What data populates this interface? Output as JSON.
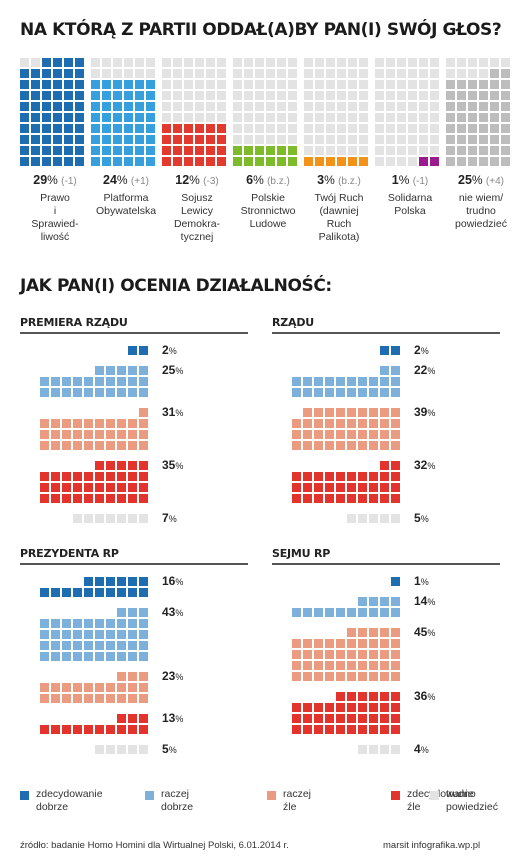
{
  "colors": {
    "empty": "#e3e3e3",
    "parties": [
      "#1f6db1",
      "#36a0df",
      "#e23a2e",
      "#7dbb2b",
      "#f29219",
      "#9b1b8e",
      "#bdbdbd"
    ],
    "ratings": [
      "#1f6db1",
      "#7db1db",
      "#eb9c80",
      "#e2332c",
      "#e3e3e3"
    ]
  },
  "title_parties": "NA KTÓRĄ Z PARTII ODDAŁ(A)BY PAN(I) SWÓJ GŁOS?",
  "title_ratings": "JAK PAN(I) OCENIA DZIAŁALNOŚĆ:",
  "chart_data": [
    {
      "type": "bar",
      "title": "NA KTÓRĄ Z PARTII ODDAŁ(A)BY PAN(I) SWÓJ GŁOS?",
      "categories": [
        "Prawo i Sprawiedliwość",
        "Platforma Obywatelska",
        "Sojusz Lewicy Demokratycznej",
        "Polskie Stronnictwo Ludowe",
        "Twój Ruch (dawniej Ruch Palikota)",
        "Solidarna Polska",
        "nie wiem/ trudno powiedzieć"
      ],
      "values": [
        29,
        24,
        12,
        6,
        3,
        1,
        25
      ],
      "changes": [
        "(-1)",
        "(+1)",
        "(-3)",
        "(b.z.)",
        "(b.z.)",
        "(-1)",
        "(+4)"
      ],
      "max_squares": 60
    },
    {
      "type": "bar",
      "title": "JAK PAN(I) OCENIA DZIAŁALNOŚĆ:",
      "categories": [
        "zdecydowanie dobrze",
        "raczej dobrze",
        "raczej źle",
        "zdecydowanie źle",
        "trudno powiedzieć"
      ],
      "series": [
        {
          "name": "PREMIERA RZĄDU",
          "values": [
            2,
            25,
            31,
            35,
            7
          ]
        },
        {
          "name": "RZĄDU",
          "values": [
            2,
            22,
            39,
            32,
            5
          ]
        },
        {
          "name": "PREZYDENTA RP",
          "values": [
            16,
            43,
            23,
            13,
            5
          ]
        },
        {
          "name": "SEJMU RP",
          "values": [
            1,
            14,
            45,
            36,
            4
          ]
        }
      ]
    }
  ],
  "parties": [
    {
      "pct": "29",
      "change": "(-1)",
      "label": "Prawo\ni\nSprawied-\nliwość"
    },
    {
      "pct": "24",
      "change": "(+1)",
      "label": "Platforma\nObywatelska"
    },
    {
      "pct": "12",
      "change": "(-3)",
      "label": "Sojusz\nLewicy\nDemokra-\ntycznej"
    },
    {
      "pct": "6",
      "change": "(b.z.)",
      "label": "Polskie\nStronnictwo\nLudowe"
    },
    {
      "pct": "3",
      "change": "(b.z.)",
      "label": "Twój Ruch\n(dawniej\nRuch\nPalikota)"
    },
    {
      "pct": "1",
      "change": "(-1)",
      "label": "Solidarna\nPolska"
    },
    {
      "pct": "25",
      "change": "(+4)",
      "label": "nie wiem/\ntrudno\npowiedzieć"
    }
  ],
  "panels": [
    {
      "title": "PREMIERA RZĄDU",
      "values": [
        "2",
        "25",
        "31",
        "35",
        "7"
      ]
    },
    {
      "title": "RZĄDU",
      "values": [
        "2",
        "22",
        "39",
        "32",
        "5"
      ]
    },
    {
      "title": "PREZYDENTA RP",
      "values": [
        "16",
        "43",
        "23",
        "13",
        "5"
      ]
    },
    {
      "title": "SEJMU RP",
      "values": [
        "1",
        "14",
        "45",
        "36",
        "4"
      ]
    }
  ],
  "legend": [
    "zdecydowanie\ndobrze",
    "raczej\ndobrze",
    "raczej\nźle",
    "zdecydowanie\nźle",
    "trudno\npowiedzieć"
  ],
  "percent_sign": "%",
  "source": "źródło: badanie Homo Homini dla Wirtualnej Polski, 6.01.2014 r.",
  "credit": "marsit infografika.wp.pl"
}
